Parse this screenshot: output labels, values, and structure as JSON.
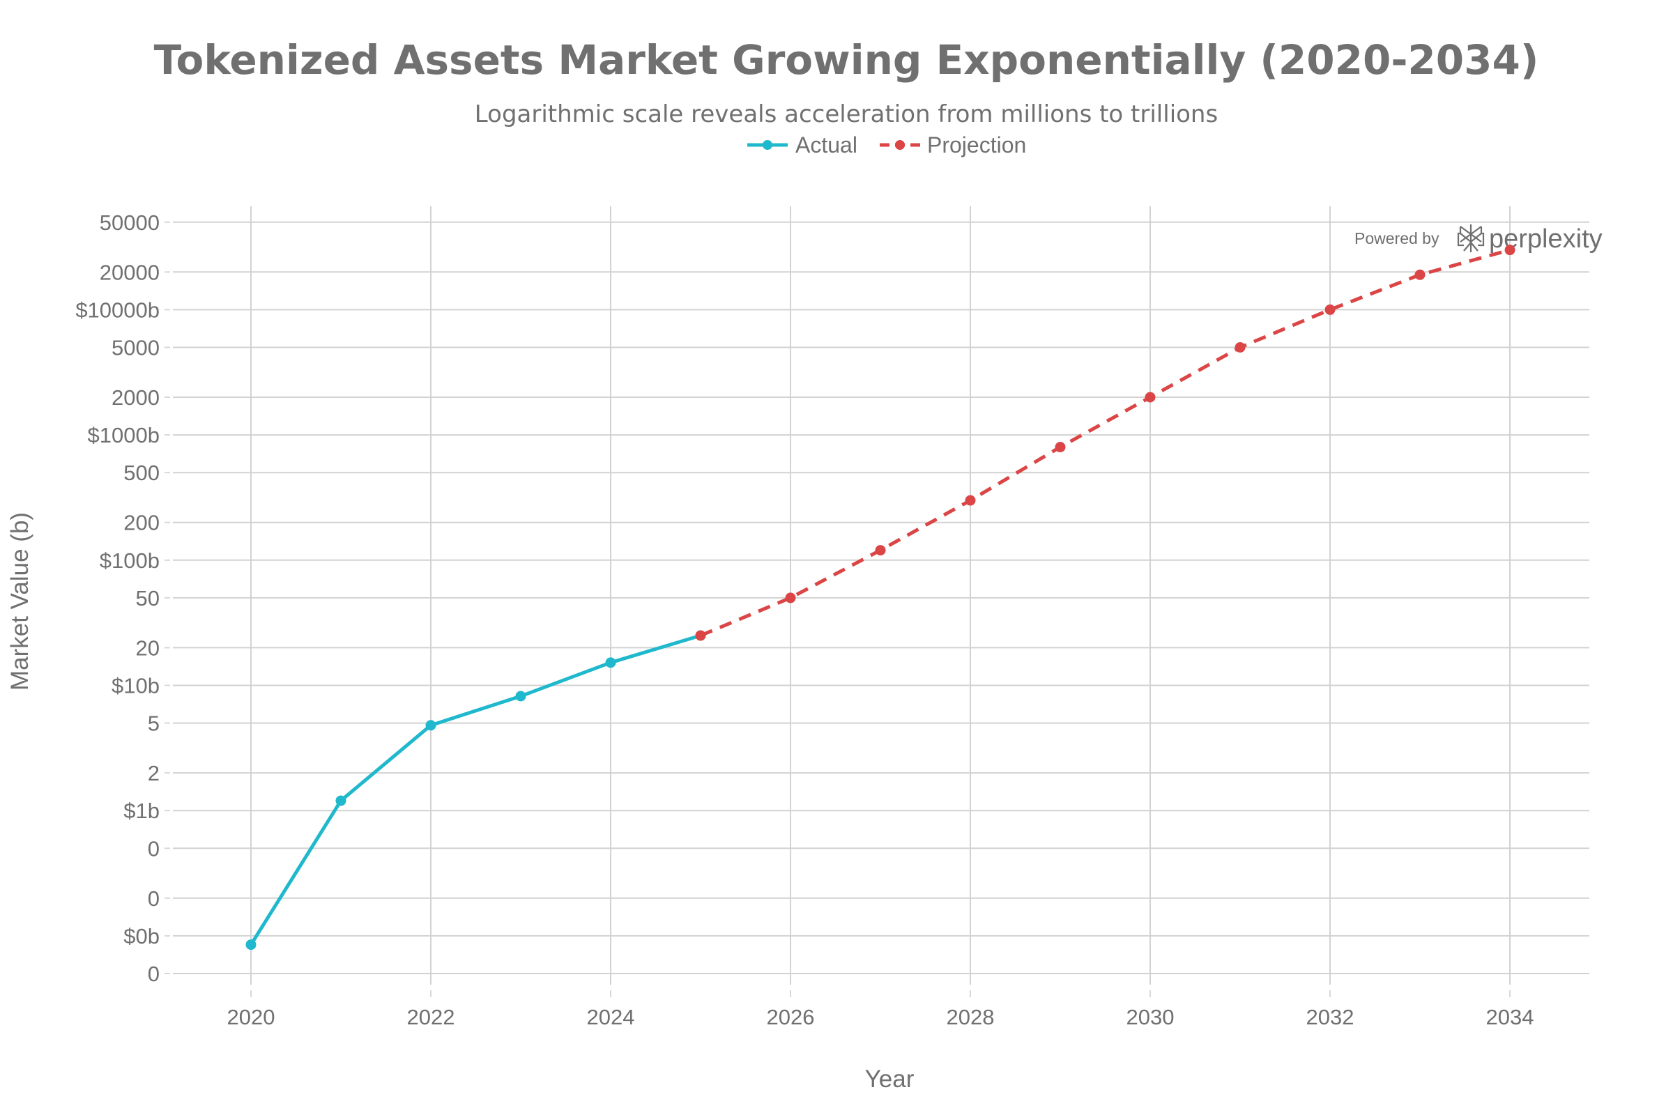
{
  "chart_data": {
    "type": "line",
    "title": "Tokenized Assets Market Growing Exponentially (2020-2034)",
    "subtitle": "Logarithmic scale reveals acceleration from millions to trillions",
    "xlabel": "Year",
    "ylabel": "Market Value (b)",
    "yscale": "log",
    "xlim": [
      2019.1,
      2034.85
    ],
    "ylim": [
      0.036,
      72000
    ],
    "grid": true,
    "legend_position": "top-center",
    "x_ticks": [
      {
        "value": 2020,
        "label": "2020"
      },
      {
        "value": 2022,
        "label": "2022"
      },
      {
        "value": 2024,
        "label": "2024"
      },
      {
        "value": 2026,
        "label": "2026"
      },
      {
        "value": 2028,
        "label": "2028"
      },
      {
        "value": 2030,
        "label": "2030"
      },
      {
        "value": 2032,
        "label": "2032"
      },
      {
        "value": 2034,
        "label": "2034"
      }
    ],
    "y_ticks": [
      {
        "value": 50000,
        "label": "50000"
      },
      {
        "value": 20000,
        "label": "20000"
      },
      {
        "value": 10000,
        "label": "$10000b"
      },
      {
        "value": 5000,
        "label": "5000"
      },
      {
        "value": 2000,
        "label": "2000"
      },
      {
        "value": 1000,
        "label": "$1000b"
      },
      {
        "value": 500,
        "label": "500"
      },
      {
        "value": 200,
        "label": "200"
      },
      {
        "value": 100,
        "label": "$100b"
      },
      {
        "value": 50,
        "label": "50"
      },
      {
        "value": 20,
        "label": "20"
      },
      {
        "value": 10,
        "label": "$10b"
      },
      {
        "value": 5,
        "label": "5"
      },
      {
        "value": 2,
        "label": "2"
      },
      {
        "value": 1,
        "label": "$1b"
      },
      {
        "value": 0.5,
        "label": "0"
      },
      {
        "value": 0.2,
        "label": "0"
      },
      {
        "value": 0.1,
        "label": "$0b"
      },
      {
        "value": 0.05,
        "label": "0"
      }
    ],
    "series": [
      {
        "name": "Actual",
        "color": "#1fb8cd",
        "dash": "solid",
        "x": [
          2020,
          2021,
          2022,
          2023,
          2024,
          2025
        ],
        "values": [
          0.085,
          1.2,
          4.8,
          8.2,
          15.2,
          25
        ]
      },
      {
        "name": "Projection",
        "color": "#db4545",
        "dash": "dashed",
        "x": [
          2025,
          2026,
          2027,
          2028,
          2029,
          2030,
          2031,
          2032,
          2033,
          2034
        ],
        "values": [
          25,
          50,
          120,
          300,
          800,
          2000,
          5000,
          10000,
          19000,
          30000
        ]
      }
    ]
  },
  "watermark": {
    "prefix": "Powered by",
    "brand": "perplexity",
    "icon": "perplexity-logo-icon"
  }
}
